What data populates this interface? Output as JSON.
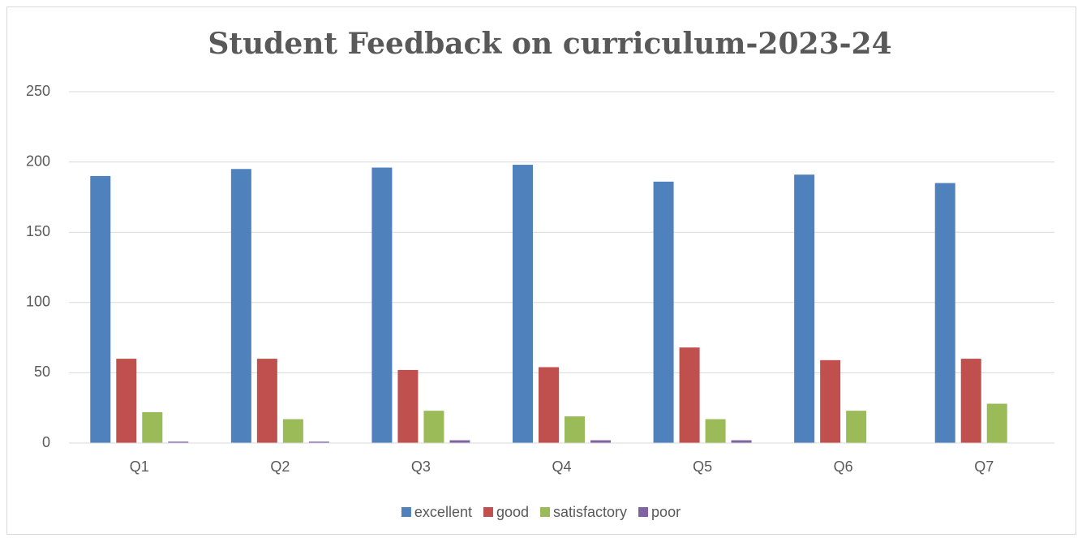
{
  "chart_data": {
    "type": "bar",
    "title": "Student Feedback on curriculum-2023-24",
    "categories": [
      "Q1",
      "Q2",
      "Q3",
      "Q4",
      "Q5",
      "Q6",
      "Q7"
    ],
    "series": [
      {
        "name": "excellent",
        "color": "#4f81bd",
        "values": [
          190,
          195,
          196,
          198,
          186,
          191,
          185
        ]
      },
      {
        "name": "good",
        "color": "#c0504d",
        "values": [
          60,
          60,
          52,
          54,
          68,
          59,
          60
        ]
      },
      {
        "name": "satisfactory",
        "color": "#9bbb59",
        "values": [
          22,
          17,
          23,
          19,
          17,
          23,
          28
        ]
      },
      {
        "name": "poor",
        "color": "#8064a2",
        "values": [
          1,
          1,
          2,
          2,
          2,
          0,
          0
        ]
      }
    ],
    "ylim": [
      0,
      250
    ],
    "yticks": [
      0,
      50,
      100,
      150,
      200,
      250
    ],
    "grid": true,
    "legend": "bottom"
  }
}
